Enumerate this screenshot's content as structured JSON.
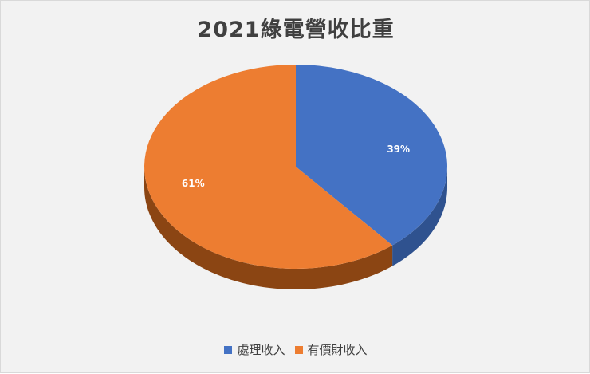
{
  "chart_data": {
    "type": "pie",
    "title": "2021綠電營收比重",
    "categories": [
      "處理收入",
      "有價財收入"
    ],
    "values": [
      39,
      61
    ],
    "data_labels": [
      "39%",
      "61%"
    ],
    "colors": [
      "#4472c4",
      "#ed7d31"
    ],
    "side_colors": [
      "#2f528f",
      "#8b4513"
    ],
    "style": "3d",
    "legend_position": "bottom"
  }
}
